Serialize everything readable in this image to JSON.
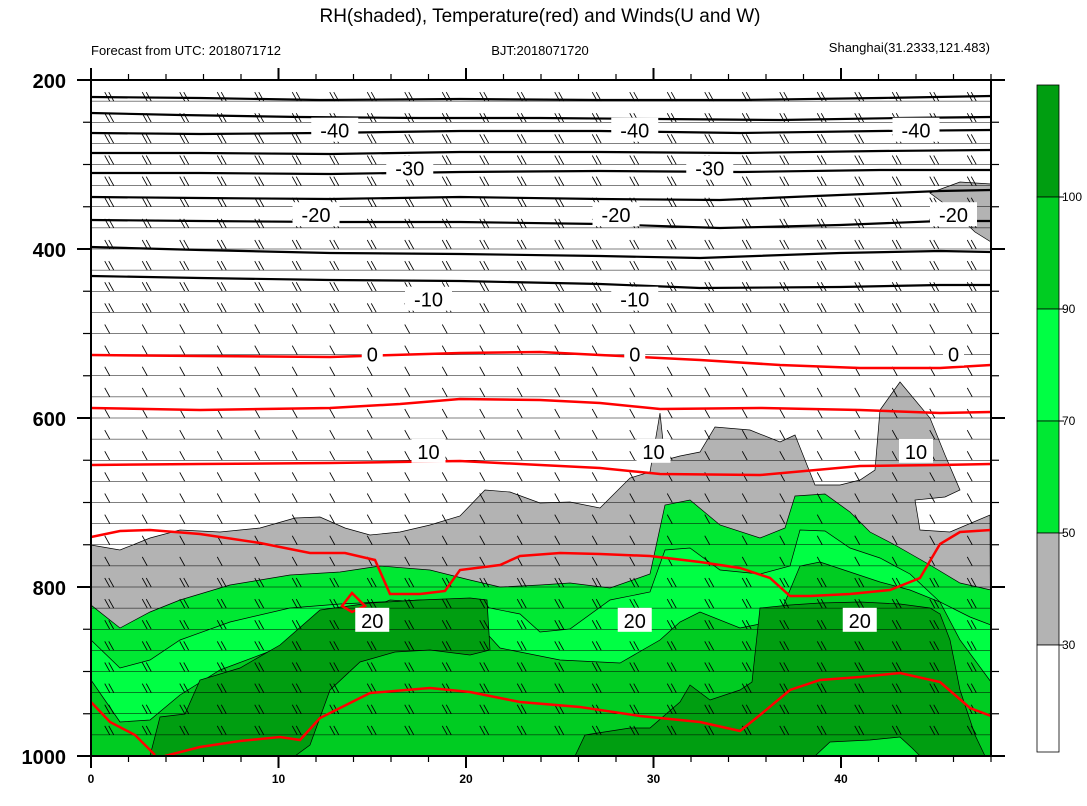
{
  "title": "RH(shaded), Temperature(red) and Winds(U and W)",
  "subtitle_left": "Forecast from UTC: 2018071712",
  "subtitle_center": "BJT:2018071720",
  "subtitle_right": "Shanghai(31.2333,121.483)",
  "colors": {
    "rh_30_50": "#b3b3b3",
    "rh_50_70": "#00e833",
    "rh_70_90": "#00ff44",
    "rh_90_100": "#00cc22",
    "rh_100_plus": "#009e11",
    "temperature": "#ff0000",
    "isotherm_negative": "#000000",
    "barbs": "#000000"
  },
  "chart_data": {
    "type": "heatmap",
    "title": "RH(shaded), Temperature(red) and Winds(U and W)",
    "x_ticks": [
      "0",
      "10",
      "20",
      "30",
      "40"
    ],
    "y_ticks": [
      "200",
      "400",
      "600",
      "800",
      "1000"
    ],
    "xlim": [
      0,
      48
    ],
    "ylim": [
      1000,
      200
    ],
    "colorbar_levels": [
      "30",
      "50",
      "70",
      "90",
      "100"
    ],
    "isotherms": [
      {
        "value": -40,
        "label": "-40",
        "p": 260,
        "labels_x": [
          13,
          29,
          44
        ]
      },
      {
        "value": -30,
        "label": "-30",
        "p": 305,
        "labels_x": [
          17,
          33
        ]
      },
      {
        "value": -20,
        "label": "-20",
        "p": 360,
        "labels_x": [
          12,
          28,
          46
        ]
      },
      {
        "value": -10,
        "label": "-10",
        "p": 460,
        "labels_x": [
          18,
          29
        ]
      },
      {
        "value": 0,
        "label": "0",
        "p": 525,
        "labels_x": [
          15,
          29,
          46
        ]
      },
      {
        "value": 10,
        "label": "10",
        "p": 640,
        "labels_x": [
          18,
          30,
          44
        ]
      },
      {
        "value": 20,
        "label": "20",
        "p": 840,
        "labels_x": [
          15,
          29,
          41
        ]
      }
    ],
    "winds": "barbs"
  }
}
